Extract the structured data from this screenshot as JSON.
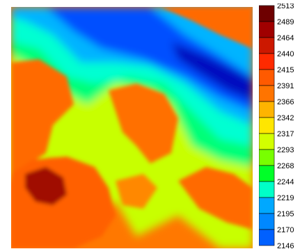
{
  "map": {
    "type": "elevation-heatmap",
    "colors": {
      "very_low": "#0000c8",
      "low": "#0050ff",
      "mid_low": "#00d2ff",
      "mid": "#00ff96",
      "mid_high": "#96ff00",
      "high": "#ffe400",
      "very_high": "#ff8000",
      "peak": "#e03000",
      "summit": "#800000"
    }
  },
  "legend": {
    "ticks": [
      "2513",
      "2489",
      "2464",
      "2440",
      "2415",
      "2391",
      "2366",
      "2342",
      "2317",
      "2293",
      "2268",
      "2244",
      "2219",
      "2195",
      "2170",
      "2146"
    ],
    "swatches": [
      "#6e0000",
      "#a00000",
      "#cc1800",
      "#ff2a00",
      "#ff5a00",
      "#ff7400",
      "#ffb400",
      "#ffe600",
      "#d2ff00",
      "#78ff00",
      "#00ff28",
      "#00ffc8",
      "#00a8ff",
      "#0088ff",
      "#0060ff"
    ]
  }
}
